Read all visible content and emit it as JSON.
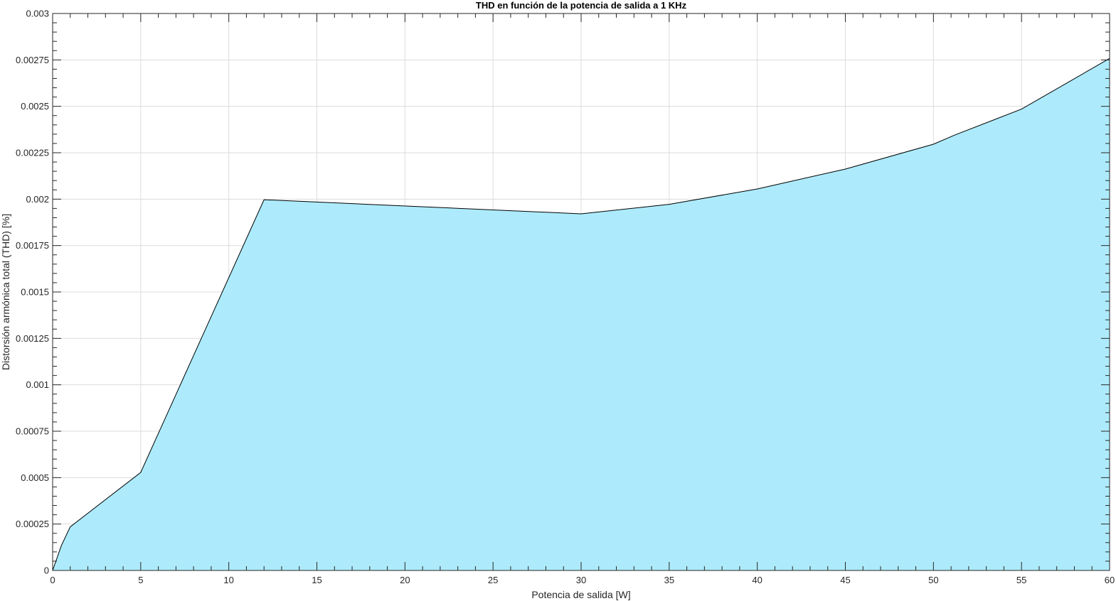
{
  "chart_data": {
    "type": "area",
    "title": "THD en función de la potencia de salida a 1 KHz",
    "xlabel": "Potencia de salida [W]",
    "ylabel": "Distorsión armónica total (THD) [%]",
    "xlim": [
      0,
      60
    ],
    "ylim": [
      0,
      0.003
    ],
    "xticks": [
      0,
      5,
      10,
      15,
      20,
      25,
      30,
      35,
      40,
      45,
      50,
      55,
      60
    ],
    "xtick_labels": [
      "0",
      "5",
      "10",
      "15",
      "20",
      "25",
      "30",
      "35",
      "40",
      "45",
      "50",
      "55",
      "60"
    ],
    "yticks": [
      0,
      0.00025,
      0.0005,
      0.00075,
      0.001,
      0.00125,
      0.0015,
      0.00175,
      0.002,
      0.00225,
      0.0025,
      0.00275,
      0.003
    ],
    "ytick_labels": [
      "0",
      "0.00025",
      "0.0005",
      "0.00075",
      "0.001",
      "0.00125",
      "0.0015",
      "0.00175",
      "0.002",
      "0.00225",
      "0.0025",
      "0.00275",
      "0.003"
    ],
    "grid": true,
    "series": [
      {
        "x": [
          0,
          0.5,
          1,
          5,
          12,
          30,
          35,
          40,
          45,
          50,
          51.2,
          55,
          60
        ],
        "values": [
          0,
          0.000135,
          0.000235,
          0.000528,
          0.001997,
          0.001921,
          0.001972,
          0.002055,
          0.002162,
          0.002296,
          0.002345,
          0.002485,
          0.002758
        ],
        "fill_color": "#ADEBFC",
        "line_color": "#000000"
      }
    ]
  }
}
